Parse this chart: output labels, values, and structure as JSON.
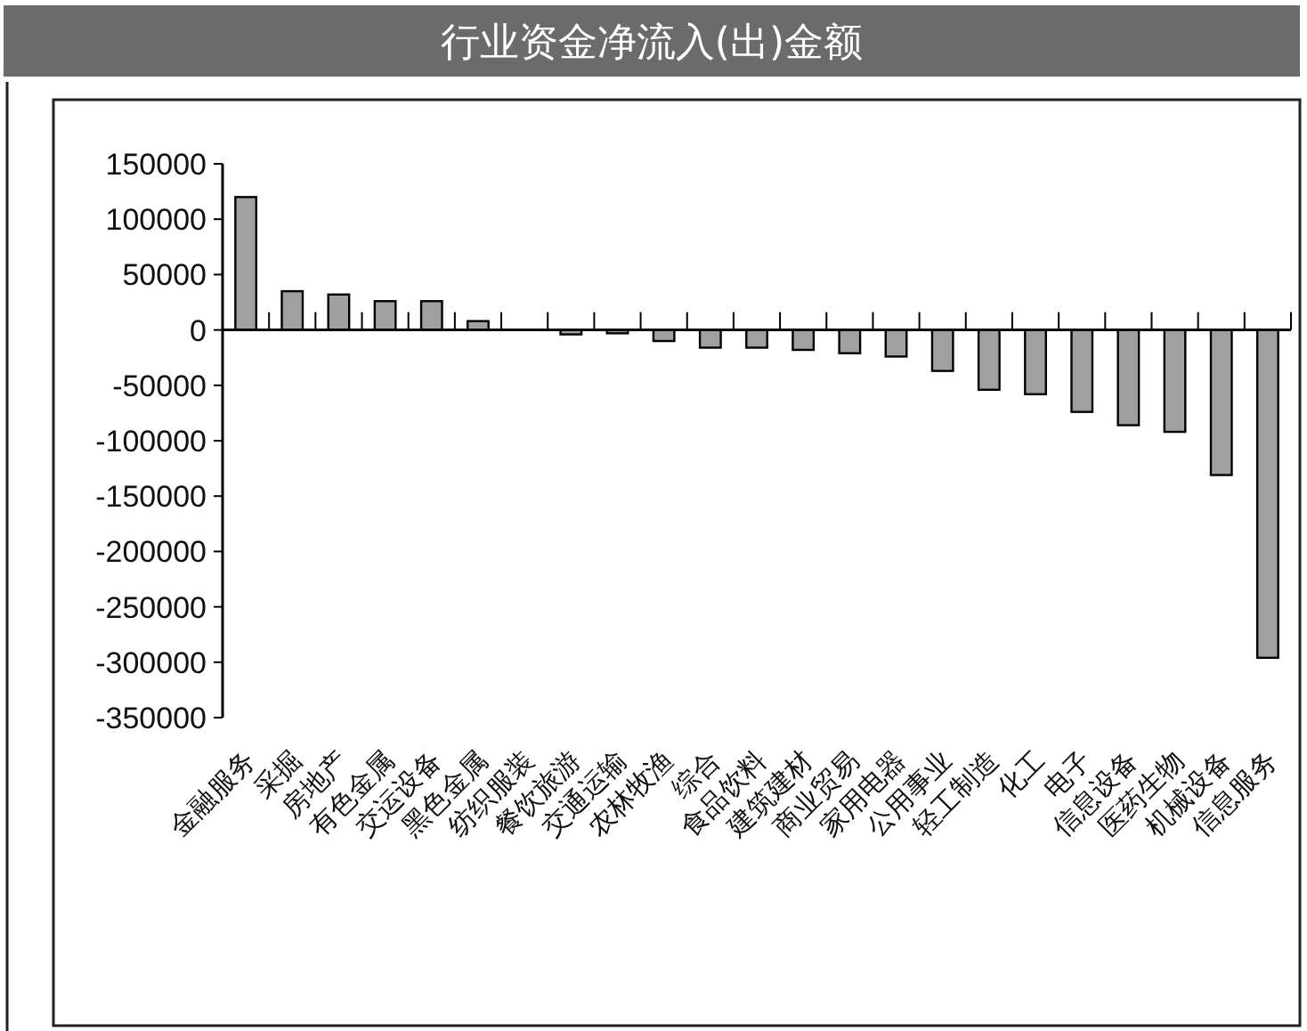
{
  "chart_data": {
    "type": "bar",
    "title": "行业资金净流入(出)金额",
    "categories": [
      "金融服务",
      "采掘",
      "房地产",
      "有色金属",
      "交运设备",
      "黑色金属",
      "纺织服装",
      "餐饮旅游",
      "交通运输",
      "农林牧渔",
      "综合",
      "食品饮料",
      "建筑建材",
      "商业贸易",
      "家用电器",
      "公用事业",
      "轻工制造",
      "化工",
      "电子",
      "信息设备",
      "医药生物",
      "机械设备",
      "信息服务"
    ],
    "values": [
      120000,
      35000,
      32000,
      26000,
      26000,
      8000,
      0,
      -4000,
      -3000,
      -10000,
      -16000,
      -16000,
      -18000,
      -21000,
      -24000,
      -37000,
      -54000,
      -58000,
      -74000,
      -86000,
      -92000,
      -131000,
      -296000
    ],
    "color": "#a0a0a0",
    "ylim": [
      -350000,
      150000
    ],
    "yticks": [
      150000,
      100000,
      50000,
      0,
      -50000,
      -100000,
      -150000,
      -200000,
      -250000,
      -300000,
      -350000
    ]
  }
}
